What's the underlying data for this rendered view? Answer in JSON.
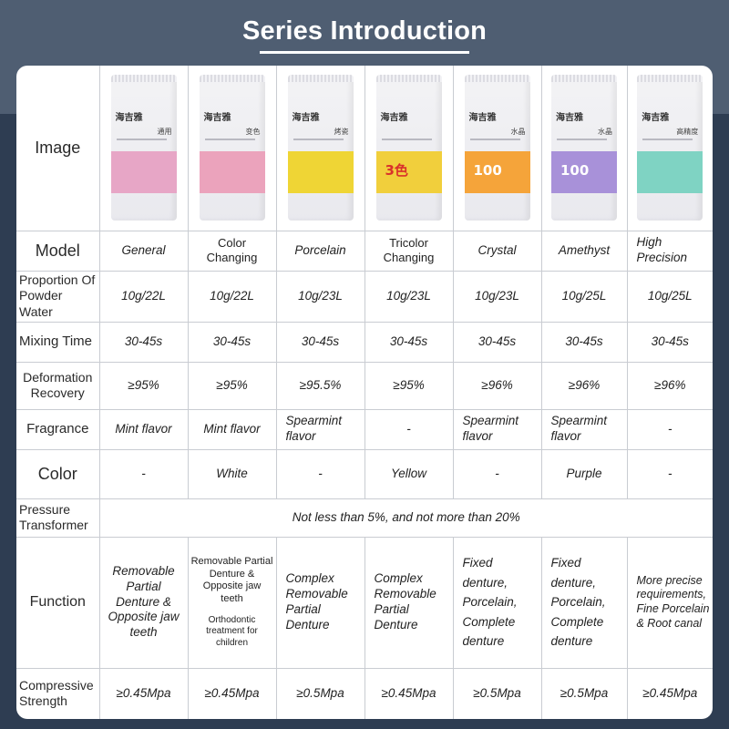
{
  "title": "Series Introduction",
  "labels": {
    "image": "Image",
    "model": "Model",
    "proportion": "Proportion Of Powder Water",
    "mixing": "Mixing Time",
    "deformation": "Deformation Recovery",
    "fragrance": "Fragrance",
    "color": "Color",
    "pressure": "Pressure Transformer",
    "function": "Function",
    "compressive": "Compressive Strength"
  },
  "pressure_value": "Not less than 5%, and not more than 20%",
  "products": [
    {
      "model": "General",
      "proportion": "10g/22L",
      "mixing": "30-45s",
      "deformation": "≥95%",
      "fragrance": "Mint flavor",
      "color": "-",
      "function": "Removable Partial Denture & Opposite jaw teeth",
      "compressive": "≥0.45Mpa",
      "bag_color": "#e7a6c6",
      "bag_logo": "海吉雅",
      "bag_cn": "通用",
      "bag_big": ""
    },
    {
      "model": "Color Changing",
      "proportion": "10g/22L",
      "mixing": "30-45s",
      "deformation": "≥95%",
      "fragrance": "Mint flavor",
      "color": "White",
      "function": "Removable Partial Denture & Opposite jaw teeth",
      "function_extra": "Orthodontic treatment for children",
      "compressive": "≥0.45Mpa",
      "bag_color": "#eba3bc",
      "bag_logo": "海吉雅",
      "bag_cn": "变色",
      "bag_big": ""
    },
    {
      "model": "Porcelain",
      "proportion": "10g/23L",
      "mixing": "30-45s",
      "deformation": "≥95.5%",
      "fragrance": "Spearmint flavor",
      "color": "-",
      "function": "Complex Removable Partial Denture",
      "compressive": "≥0.5Mpa",
      "bag_color": "#efd535",
      "bag_logo": "海吉雅",
      "bag_cn": "烤瓷",
      "bag_big": ""
    },
    {
      "model": "Tricolor Changing",
      "proportion": "10g/23L",
      "mixing": "30-45s",
      "deformation": "≥95%",
      "fragrance": "-",
      "color": "Yellow",
      "function": "Complex Removable Partial Denture",
      "compressive": "≥0.45Mpa",
      "bag_color": "#f1cf3c",
      "bag_logo": "海吉雅",
      "bag_cn": "",
      "bag_big": "3色"
    },
    {
      "model": "Crystal",
      "proportion": "10g/23L",
      "mixing": "30-45s",
      "deformation": "≥96%",
      "fragrance": "Spearmint flavor",
      "color": "-",
      "function": "Fixed denture, Porcelain, Complete denture",
      "compressive": "≥0.5Mpa",
      "bag_color": "#f5a43a",
      "bag_logo": "海吉雅",
      "bag_cn": "水晶",
      "bag_big": "100"
    },
    {
      "model": "Amethyst",
      "proportion": "10g/25L",
      "mixing": "30-45s",
      "deformation": "≥96%",
      "fragrance": "Spearmint flavor",
      "color": "Purple",
      "function": "Fixed denture, Porcelain, Complete denture",
      "compressive": "≥0.5Mpa",
      "bag_color": "#a891d9",
      "bag_logo": "海吉雅",
      "bag_cn": "水晶",
      "bag_big": "100"
    },
    {
      "model": "High Precision",
      "proportion": "10g/25L",
      "mixing": "30-45s",
      "deformation": "≥96%",
      "fragrance": "-",
      "color": "-",
      "function": "More precise requirements, Fine Porcelain & Root canal",
      "compressive": "≥0.45Mpa",
      "bag_color": "#7fd3c3",
      "bag_logo": "海吉雅",
      "bag_cn": "高精度",
      "bag_big": ""
    }
  ]
}
